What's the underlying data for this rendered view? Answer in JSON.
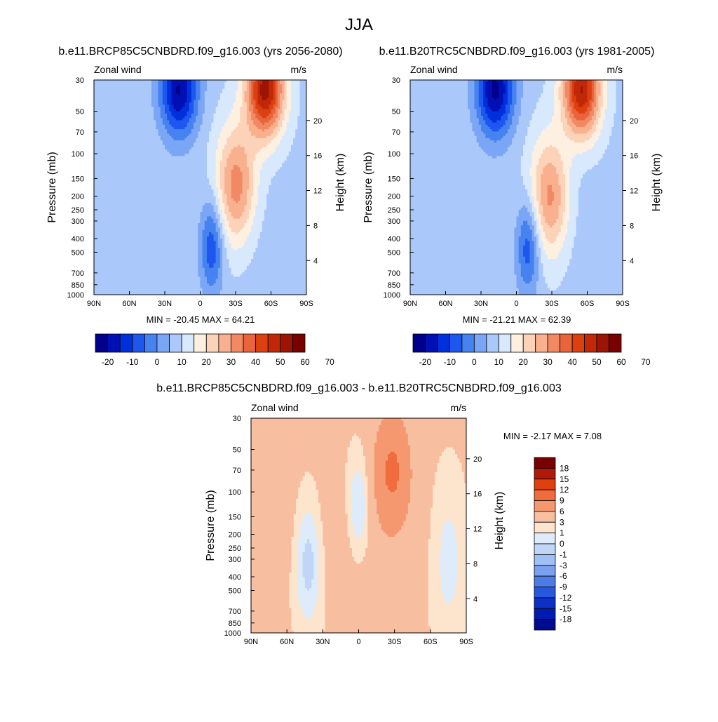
{
  "figure": {
    "title": "JJA"
  },
  "panels": [
    {
      "subtitle": "b.e11.BRCP85C5CNBDRD.f09_g16.003 (yrs 2056-2080)",
      "left_label": "Zonal wind",
      "right_label": "m/s",
      "minmax": "MIN = -20.45  MAX = 64.21"
    },
    {
      "subtitle": "b.e11.B20TRC5CNBDRD.f09_g16.003 (yrs 1981-2005)",
      "left_label": "Zonal wind",
      "right_label": "m/s",
      "minmax": "MIN = -21.21  MAX = 62.39"
    },
    {
      "subtitle": "b.e11.BRCP85C5CNBDRD.f09_g16.003 - b.e11.B20TRC5CNBDRD.f09_g16.003",
      "left_label": "Zonal wind",
      "right_label": "m/s",
      "minmax": "MIN =  -2.17  MAX =   7.08"
    }
  ],
  "chart_data": [
    {
      "type": "heatmap",
      "plot": "latitude-pressure contour",
      "x": {
        "ticks": [
          "90N",
          "60N",
          "30N",
          "0",
          "30S",
          "60S",
          "90S"
        ],
        "range": [
          90,
          -90
        ]
      },
      "y": {
        "label": "Pressure (mb)",
        "ticks": [
          "30",
          "50",
          "70",
          "100",
          "150",
          "200",
          "250",
          "300",
          "400",
          "500",
          "700",
          "850",
          "1000"
        ],
        "range": [
          30,
          1000
        ],
        "scale": "log"
      },
      "y2": {
        "label": "Height (km)",
        "ticks": [
          "4",
          "8",
          "12",
          "16",
          "20"
        ]
      },
      "colorbar": {
        "orientation": "horizontal",
        "labels": [
          "-20",
          "-10",
          "0",
          "10",
          "20",
          "30",
          "40",
          "50",
          "60",
          "70"
        ]
      },
      "features": [
        {
          "lat": -40,
          "p": 200,
          "value": 4,
          "extent": [
            18,
            160
          ]
        },
        {
          "lat": 18,
          "p": 35,
          "value": -20,
          "extent": [
            16,
            55
          ]
        },
        {
          "lat": -32,
          "p": 170,
          "value": 44,
          "extent": [
            18,
            110
          ]
        },
        {
          "lat": -55,
          "p": 35,
          "value": 60,
          "extent": [
            16,
            55
          ]
        },
        {
          "lat": -10,
          "p": 450,
          "value": -8,
          "extent": [
            10,
            60
          ]
        }
      ]
    },
    {
      "type": "heatmap",
      "plot": "latitude-pressure contour",
      "x": {
        "ticks": [
          "90N",
          "60N",
          "30N",
          "0",
          "30S",
          "60S",
          "90S"
        ],
        "range": [
          90,
          -90
        ]
      },
      "y": {
        "label": "Pressure (mb)",
        "ticks": [
          "30",
          "50",
          "70",
          "100",
          "150",
          "200",
          "250",
          "300",
          "400",
          "500",
          "700",
          "850",
          "1000"
        ],
        "range": [
          30,
          1000
        ],
        "scale": "log"
      },
      "y2": {
        "label": "Height (km)",
        "ticks": [
          "4",
          "8",
          "12",
          "16",
          "20"
        ]
      },
      "colorbar": {
        "orientation": "horizontal",
        "labels": [
          "-20",
          "-10",
          "0",
          "10",
          "20",
          "30",
          "40",
          "50",
          "60",
          "70"
        ]
      },
      "features": [
        {
          "lat": -40,
          "p": 200,
          "value": 4,
          "extent": [
            18,
            160
          ]
        },
        {
          "lat": 18,
          "p": 35,
          "value": -21,
          "extent": [
            16,
            55
          ]
        },
        {
          "lat": -30,
          "p": 200,
          "value": 42,
          "extent": [
            18,
            110
          ]
        },
        {
          "lat": -55,
          "p": 35,
          "value": 58,
          "extent": [
            16,
            55
          ]
        },
        {
          "lat": -10,
          "p": 450,
          "value": -8,
          "extent": [
            10,
            60
          ]
        }
      ]
    },
    {
      "type": "heatmap",
      "plot": "latitude-pressure contour (difference)",
      "x": {
        "ticks": [
          "90N",
          "60N",
          "30N",
          "0",
          "30S",
          "60S",
          "90S"
        ],
        "range": [
          90,
          -90
        ]
      },
      "y": {
        "label": "Pressure (mb)",
        "ticks": [
          "30",
          "50",
          "70",
          "100",
          "150",
          "200",
          "250",
          "300",
          "400",
          "500",
          "700",
          "850",
          "1000"
        ],
        "range": [
          30,
          1000
        ],
        "scale": "log"
      },
      "y2": {
        "label": "Height (km)",
        "ticks": [
          "4",
          "8",
          "12",
          "16",
          "20"
        ]
      },
      "colorbar": {
        "orientation": "vertical",
        "labels": [
          "18",
          "15",
          "12",
          "9",
          "6",
          "3",
          "1",
          "0",
          "-1",
          "-3",
          "-6",
          "-9",
          "-12",
          "-15",
          "-18"
        ]
      },
      "features": [
        {
          "lat": -28,
          "p": 70,
          "value": 6.5,
          "extent": [
            15,
            90
          ]
        },
        {
          "lat": 42,
          "p": 300,
          "value": -2,
          "extent": [
            12,
            120
          ]
        },
        {
          "lat": 0,
          "p": 130,
          "value": -1.5,
          "extent": [
            10,
            70
          ]
        },
        {
          "lat": -75,
          "p": 300,
          "value": -0.5,
          "extent": [
            14,
            200
          ]
        },
        {
          "lat": 20,
          "p": 200,
          "value": 2,
          "extent": [
            70,
            120
          ]
        }
      ]
    }
  ],
  "colors": {
    "top_scale": [
      "#00008c",
      "#0010b4",
      "#0030dc",
      "#1e56f0",
      "#4682f0",
      "#7aa6f5",
      "#aac8fa",
      "#d8e8fd",
      "#fdf0e0",
      "#fcd2b8",
      "#f8b08e",
      "#f18a64",
      "#e8643c",
      "#dc4010",
      "#c02808",
      "#9c1404",
      "#780000"
    ],
    "diff_scale": [
      "#780000",
      "#b01808",
      "#e04010",
      "#f06c3c",
      "#f59870",
      "#f8bea0",
      "#fde4cc",
      "#ddebfa",
      "#c0d6f8",
      "#a0bff4",
      "#7aa0ee",
      "#4e7ce6",
      "#2858de",
      "#0c30c8",
      "#001cb0",
      "#000c90"
    ]
  }
}
